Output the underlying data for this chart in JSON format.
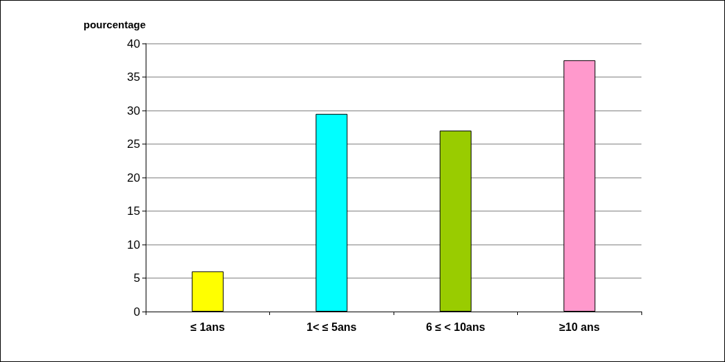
{
  "chart_data": {
    "type": "bar",
    "ylabel": "pourcentage",
    "categories": [
      "≤ 1ans",
      "1< ≤ 5ans",
      "6 ≤ < 10ans",
      "≥10 ans"
    ],
    "values": [
      6,
      29.5,
      27,
      37.5
    ],
    "colors": [
      "#ffff00",
      "#00ffff",
      "#99cc00",
      "#ff99cc"
    ],
    "ylim": [
      0,
      40
    ],
    "yticks": [
      0,
      5,
      10,
      15,
      20,
      25,
      30,
      35,
      40
    ],
    "grid": "y"
  }
}
